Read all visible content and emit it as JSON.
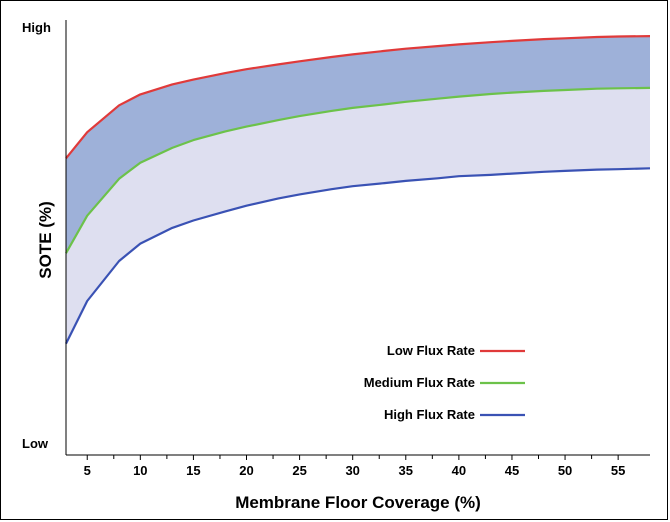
{
  "chart_data": {
    "type": "area",
    "title": "",
    "xlabel": "Membrane Floor Coverage (%)",
    "ylabel": "SOTE (%)",
    "y_top_label": "High",
    "y_bottom_label": "Low",
    "xlim": [
      3,
      58
    ],
    "ylim": [
      0,
      100
    ],
    "x_ticks": [
      5,
      10,
      15,
      20,
      25,
      30,
      35,
      40,
      45,
      50,
      55
    ],
    "grid": false,
    "legend_position": "bottom-right",
    "x": [
      3,
      5,
      8,
      10,
      13,
      15,
      18,
      20,
      23,
      25,
      28,
      30,
      33,
      35,
      38,
      40,
      43,
      45,
      48,
      50,
      53,
      55,
      58
    ],
    "series": [
      {
        "name": "Low Flux Rate",
        "color": "#e03a3a",
        "values": [
          68.2,
          74.2,
          80.4,
          82.9,
          85.2,
          86.3,
          87.8,
          88.7,
          89.8,
          90.5,
          91.5,
          92.1,
          92.9,
          93.4,
          94.0,
          94.4,
          94.9,
          95.2,
          95.6,
          95.8,
          96.1,
          96.2,
          96.3
        ]
      },
      {
        "name": "Medium Flux Rate",
        "color": "#6cc24a",
        "values": [
          46.4,
          55.0,
          63.5,
          67.2,
          70.6,
          72.4,
          74.4,
          75.5,
          77.0,
          77.9,
          79.1,
          79.8,
          80.6,
          81.2,
          81.9,
          82.4,
          83.0,
          83.3,
          83.7,
          83.9,
          84.2,
          84.3,
          84.4
        ]
      },
      {
        "name": "High Flux Rate",
        "color": "#3a52b4",
        "values": [
          25.6,
          35.4,
          44.6,
          48.6,
          52.2,
          53.9,
          56.0,
          57.3,
          59.0,
          59.9,
          61.1,
          61.8,
          62.5,
          63.0,
          63.6,
          64.1,
          64.4,
          64.7,
          65.1,
          65.3,
          65.6,
          65.7,
          65.9
        ]
      }
    ],
    "fills": {
      "upper_band": "#9eb1d9",
      "lower_band": "#dedff0"
    }
  }
}
